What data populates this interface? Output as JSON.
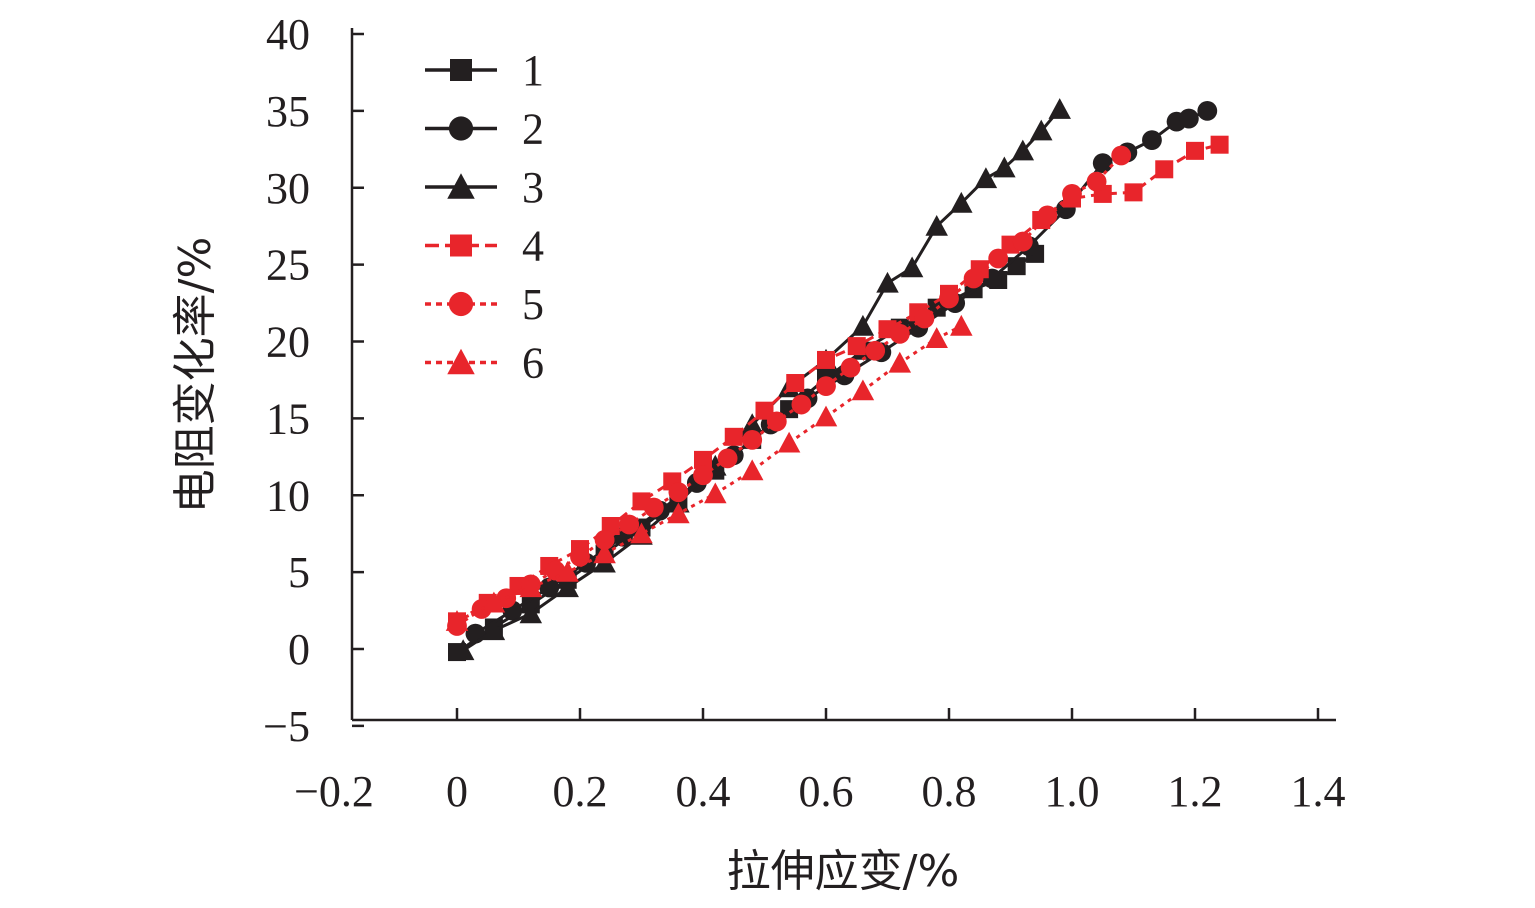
{
  "chart_data": {
    "type": "line",
    "xlabel": "拉伸应变/%",
    "ylabel": "电阻变化率/%",
    "xlim": [
      -0.2,
      1.4
    ],
    "ylim": [
      -5,
      40
    ],
    "xticks": [
      "−0.2",
      "0",
      "0.2",
      "0.4",
      "0.6",
      "0.8",
      "1.0",
      "1.2",
      "1.4"
    ],
    "yticks": [
      "−5",
      "0",
      "5",
      "10",
      "15",
      "20",
      "25",
      "30",
      "35",
      "40"
    ],
    "grid": false,
    "legend_position": "top-left",
    "series": [
      {
        "name": "1",
        "color": "#231f20",
        "marker": "square",
        "dash": "solid",
        "x": [
          0.0,
          0.06,
          0.12,
          0.18,
          0.24,
          0.3,
          0.36,
          0.42,
          0.48,
          0.54,
          0.6,
          0.66,
          0.72,
          0.78,
          0.84,
          0.88,
          0.91,
          0.94
        ],
        "y": [
          -0.2,
          1.4,
          2.9,
          4.5,
          6.2,
          7.9,
          9.7,
          11.6,
          13.6,
          15.6,
          17.6,
          19.4,
          20.9,
          22.2,
          23.4,
          24.0,
          24.9,
          25.7
        ]
      },
      {
        "name": "2",
        "color": "#231f20",
        "marker": "circle",
        "dash": "solid",
        "x": [
          0.03,
          0.09,
          0.15,
          0.21,
          0.27,
          0.33,
          0.39,
          0.45,
          0.51,
          0.57,
          0.63,
          0.69,
          0.75,
          0.81,
          0.87,
          0.93,
          0.99,
          1.05,
          1.09,
          1.13,
          1.17,
          1.19,
          1.22
        ],
        "y": [
          1.0,
          2.5,
          4.0,
          5.6,
          7.3,
          9.0,
          10.8,
          12.6,
          14.6,
          16.3,
          17.8,
          19.3,
          20.9,
          22.5,
          24.1,
          26.2,
          28.6,
          31.6,
          32.3,
          33.1,
          34.3,
          34.5,
          35.0
        ]
      },
      {
        "name": "3",
        "color": "#231f20",
        "marker": "triangle",
        "dash": "solid",
        "x": [
          0.01,
          0.06,
          0.12,
          0.18,
          0.24,
          0.3,
          0.36,
          0.42,
          0.48,
          0.54,
          0.6,
          0.66,
          0.7,
          0.74,
          0.78,
          0.82,
          0.86,
          0.89,
          0.92,
          0.95,
          0.98
        ],
        "y": [
          -0.1,
          1.2,
          2.3,
          4.0,
          5.6,
          7.4,
          9.5,
          11.9,
          14.6,
          17.0,
          18.8,
          21.0,
          23.8,
          24.8,
          27.5,
          29.0,
          30.6,
          31.3,
          32.4,
          33.7,
          35.1
        ]
      },
      {
        "name": "4",
        "color": "#e8252b",
        "marker": "square",
        "dash": "dashed",
        "x": [
          0.0,
          0.05,
          0.1,
          0.15,
          0.2,
          0.25,
          0.3,
          0.35,
          0.4,
          0.45,
          0.5,
          0.55,
          0.6,
          0.65,
          0.7,
          0.75,
          0.8,
          0.85,
          0.9,
          0.95,
          1.0,
          1.05,
          1.1,
          1.15,
          1.2,
          1.24
        ],
        "y": [
          1.8,
          3.0,
          4.1,
          5.4,
          6.5,
          8.0,
          9.6,
          10.9,
          12.3,
          13.8,
          15.5,
          17.3,
          18.8,
          19.7,
          20.8,
          21.9,
          23.1,
          24.7,
          26.3,
          27.9,
          29.3,
          29.6,
          29.7,
          31.2,
          32.4,
          32.8
        ]
      },
      {
        "name": "5",
        "color": "#e8252b",
        "marker": "circle",
        "dash": "dotted",
        "x": [
          0.0,
          0.04,
          0.08,
          0.12,
          0.16,
          0.2,
          0.24,
          0.28,
          0.32,
          0.36,
          0.4,
          0.44,
          0.48,
          0.52,
          0.56,
          0.6,
          0.64,
          0.68,
          0.72,
          0.76,
          0.8,
          0.84,
          0.88,
          0.92,
          0.96,
          1.0,
          1.04,
          1.08
        ],
        "y": [
          1.5,
          2.6,
          3.3,
          4.2,
          5.1,
          6.0,
          7.1,
          8.1,
          9.2,
          10.2,
          11.3,
          12.4,
          13.6,
          14.8,
          15.9,
          17.1,
          18.3,
          19.4,
          20.5,
          21.5,
          22.8,
          24.1,
          25.4,
          26.5,
          28.2,
          29.6,
          30.4,
          32.1
        ]
      },
      {
        "name": "6",
        "color": "#e8252b",
        "marker": "triangle",
        "dash": "dotted",
        "x": [
          0.0,
          0.06,
          0.12,
          0.18,
          0.24,
          0.3,
          0.36,
          0.42,
          0.48,
          0.54,
          0.6,
          0.66,
          0.72,
          0.78,
          0.82
        ],
        "y": [
          1.8,
          3.0,
          4.0,
          5.0,
          6.2,
          7.5,
          8.8,
          10.1,
          11.6,
          13.4,
          15.1,
          16.8,
          18.6,
          20.2,
          21.0
        ]
      }
    ]
  }
}
